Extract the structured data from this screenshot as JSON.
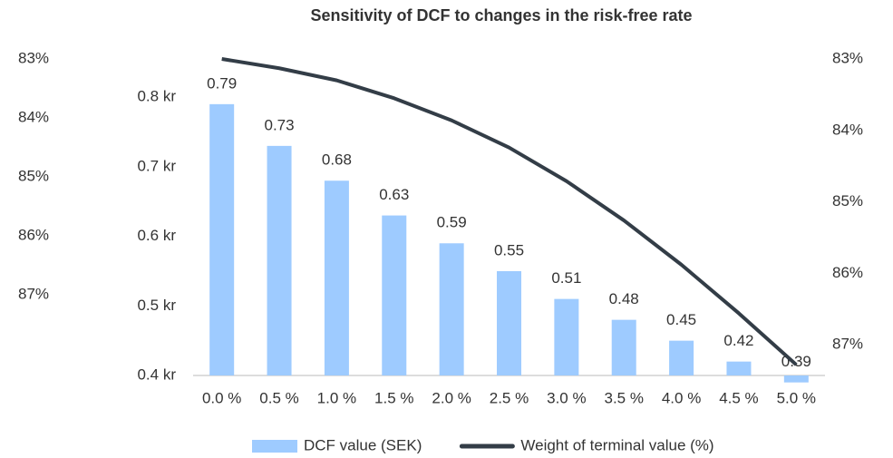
{
  "chart_data": {
    "type": "bar_line",
    "title": "Sensitivity of DCF to changes in the risk-free rate",
    "categories": [
      "0.0 %",
      "0.5 %",
      "1.0 %",
      "1.5 %",
      "2.0 %",
      "2.5 %",
      "3.0 %",
      "3.5 %",
      "4.0 %",
      "4.5 %",
      "5.0 %"
    ],
    "series": [
      {
        "name": "DCF value (SEK)",
        "type": "bar",
        "color": "#9ecbff",
        "values": [
          0.79,
          0.73,
          0.68,
          0.63,
          0.59,
          0.55,
          0.51,
          0.48,
          0.45,
          0.42,
          0.39
        ],
        "data_labels": true
      },
      {
        "name": "Weight of terminal value (%)",
        "type": "line",
        "axis": "y2",
        "color": "#333d47",
        "values": [
          83.0,
          83.13,
          83.3,
          83.55,
          83.86,
          84.24,
          84.71,
          85.26,
          85.88,
          86.56,
          87.28
        ]
      }
    ],
    "ylim": [
      0.4,
      0.855
    ],
    "yticks": [
      {
        "value": 0.4,
        "label": "0.4 kr"
      },
      {
        "value": 0.5,
        "label": "0.5 kr"
      },
      {
        "value": 0.6,
        "label": "0.6 kr"
      },
      {
        "value": 0.7,
        "label": "0.7 kr"
      },
      {
        "value": 0.8,
        "label": "0.8 kr"
      }
    ],
    "y2lim": [
      87.43,
      83
    ],
    "y2ticks": [
      {
        "value": 83,
        "label": "83%"
      },
      {
        "value": 84,
        "label": "84%"
      },
      {
        "value": 85,
        "label": "85%"
      },
      {
        "value": 86,
        "label": "86%"
      },
      {
        "value": 87,
        "label": "87%"
      }
    ],
    "y3lim": [
      88.37,
      83
    ],
    "y3ticks": [
      {
        "value": 83,
        "label": "83%"
      },
      {
        "value": 84,
        "label": "84%"
      },
      {
        "value": 85,
        "label": "85%"
      },
      {
        "value": 86,
        "label": "86%"
      },
      {
        "value": 87,
        "label": "87%"
      }
    ],
    "legend": "bottom"
  }
}
